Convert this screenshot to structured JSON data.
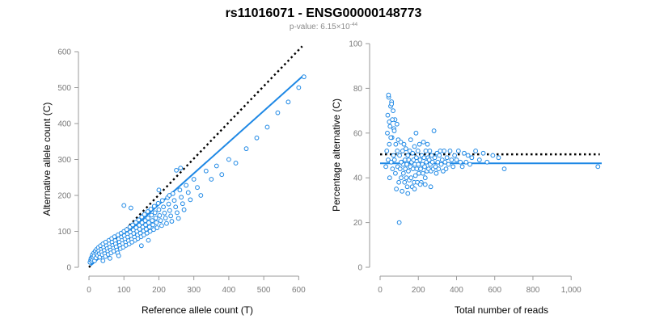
{
  "title": "rs11016071 - ENSG00000148773",
  "subtitle": {
    "prefix": "p-value: 6.15×10",
    "exponent": "-44"
  },
  "colors": {
    "points": "#1e88e5",
    "fit_line": "#1e88e5",
    "reference_line": "#000000",
    "axis": "#9a9a9a"
  },
  "chart_data": [
    {
      "type": "scatter",
      "xlabel": "Reference allele count (T)",
      "ylabel": "Alternative allele count (C)",
      "xlim": [
        0,
        620
      ],
      "ylim": [
        0,
        600
      ],
      "xticks": [
        0,
        100,
        200,
        300,
        400,
        500,
        600
      ],
      "yticks": [
        0,
        100,
        200,
        300,
        400,
        500,
        600
      ],
      "xtick_labels": [
        "0",
        "100",
        "200",
        "300",
        "400",
        "500",
        "600"
      ],
      "ytick_labels": [
        "0",
        "100",
        "200",
        "300",
        "400",
        "500",
        "600"
      ],
      "grid": false,
      "reference_line": {
        "style": "dotted",
        "points": [
          [
            0,
            0
          ],
          [
            610,
            615
          ]
        ]
      },
      "fit_line": {
        "style": "solid",
        "points": [
          [
            5,
            5
          ],
          [
            615,
            535
          ]
        ]
      },
      "points": [
        [
          3,
          14
        ],
        [
          5,
          20
        ],
        [
          6,
          25
        ],
        [
          8,
          17
        ],
        [
          9,
          30
        ],
        [
          10,
          22
        ],
        [
          10,
          35
        ],
        [
          12,
          28
        ],
        [
          14,
          40
        ],
        [
          15,
          32
        ],
        [
          16,
          18
        ],
        [
          18,
          45
        ],
        [
          20,
          38
        ],
        [
          20,
          26
        ],
        [
          22,
          50
        ],
        [
          24,
          42
        ],
        [
          25,
          33
        ],
        [
          27,
          55
        ],
        [
          28,
          46
        ],
        [
          30,
          38
        ],
        [
          31,
          28
        ],
        [
          33,
          60
        ],
        [
          35,
          50
        ],
        [
          36,
          42
        ],
        [
          38,
          35
        ],
        [
          40,
          65
        ],
        [
          42,
          55
        ],
        [
          44,
          47
        ],
        [
          45,
          38
        ],
        [
          47,
          30
        ],
        [
          48,
          70
        ],
        [
          50,
          60
        ],
        [
          52,
          52
        ],
        [
          54,
          44
        ],
        [
          55,
          36
        ],
        [
          57,
          75
        ],
        [
          58,
          65
        ],
        [
          60,
          56
        ],
        [
          62,
          48
        ],
        [
          63,
          40
        ],
        [
          65,
          80
        ],
        [
          66,
          70
        ],
        [
          68,
          61
        ],
        [
          70,
          53
        ],
        [
          71,
          45
        ],
        [
          73,
          85
        ],
        [
          75,
          74
        ],
        [
          76,
          65
        ],
        [
          78,
          57
        ],
        [
          80,
          48
        ],
        [
          82,
          40
        ],
        [
          83,
          90
        ],
        [
          85,
          79
        ],
        [
          87,
          70
        ],
        [
          88,
          61
        ],
        [
          90,
          52
        ],
        [
          92,
          95
        ],
        [
          93,
          84
        ],
        [
          95,
          75
        ],
        [
          96,
          66
        ],
        [
          98,
          56
        ],
        [
          100,
          100
        ],
        [
          101,
          88
        ],
        [
          103,
          79
        ],
        [
          105,
          70
        ],
        [
          106,
          61
        ],
        [
          108,
          105
        ],
        [
          110,
          93
        ],
        [
          111,
          84
        ],
        [
          113,
          74
        ],
        [
          115,
          65
        ],
        [
          117,
          112
        ],
        [
          118,
          98
        ],
        [
          120,
          88
        ],
        [
          122,
          78
        ],
        [
          123,
          70
        ],
        [
          125,
          118
        ],
        [
          127,
          104
        ],
        [
          128,
          94
        ],
        [
          130,
          84
        ],
        [
          132,
          75
        ],
        [
          134,
          125
        ],
        [
          135,
          110
        ],
        [
          137,
          100
        ],
        [
          139,
          90
        ],
        [
          140,
          80
        ],
        [
          142,
          132
        ],
        [
          144,
          117
        ],
        [
          145,
          106
        ],
        [
          147,
          95
        ],
        [
          149,
          85
        ],
        [
          151,
          140
        ],
        [
          152,
          124
        ],
        [
          154,
          112
        ],
        [
          156,
          101
        ],
        [
          157,
          90
        ],
        [
          159,
          147
        ],
        [
          161,
          130
        ],
        [
          162,
          118
        ],
        [
          164,
          106
        ],
        [
          166,
          95
        ],
        [
          168,
          155
        ],
        [
          169,
          137
        ],
        [
          171,
          124
        ],
        [
          173,
          112
        ],
        [
          175,
          100
        ],
        [
          177,
          162
        ],
        [
          179,
          145
        ],
        [
          181,
          130
        ],
        [
          183,
          118
        ],
        [
          185,
          105
        ],
        [
          187,
          170
        ],
        [
          189,
          152
        ],
        [
          191,
          137
        ],
        [
          193,
          124
        ],
        [
          195,
          110
        ],
        [
          198,
          178
        ],
        [
          200,
          160
        ],
        [
          202,
          144
        ],
        [
          205,
          130
        ],
        [
          208,
          116
        ],
        [
          210,
          186
        ],
        [
          213,
          168
        ],
        [
          216,
          151
        ],
        [
          219,
          137
        ],
        [
          222,
          122
        ],
        [
          225,
          194
        ],
        [
          228,
          176
        ],
        [
          231,
          158
        ],
        [
          234,
          143
        ],
        [
          237,
          128
        ],
        [
          240,
          205
        ],
        [
          244,
          186
        ],
        [
          248,
          168
        ],
        [
          252,
          152
        ],
        [
          256,
          136
        ],
        [
          260,
          215
        ],
        [
          264,
          195
        ],
        [
          268,
          177
        ],
        [
          272,
          160
        ],
        [
          278,
          228
        ],
        [
          284,
          208
        ],
        [
          290,
          188
        ],
        [
          300,
          245
        ],
        [
          310,
          222
        ],
        [
          320,
          200
        ],
        [
          335,
          268
        ],
        [
          350,
          245
        ],
        [
          365,
          282
        ],
        [
          380,
          258
        ],
        [
          400,
          300
        ],
        [
          420,
          290
        ],
        [
          450,
          330
        ],
        [
          480,
          360
        ],
        [
          510,
          390
        ],
        [
          540,
          430
        ],
        [
          570,
          460
        ],
        [
          600,
          500
        ],
        [
          615,
          530
        ],
        [
          40,
          18
        ],
        [
          60,
          25
        ],
        [
          85,
          32
        ],
        [
          100,
          172
        ],
        [
          120,
          165
        ],
        [
          150,
          60
        ],
        [
          170,
          75
        ],
        [
          200,
          215
        ],
        [
          230,
          200
        ],
        [
          250,
          270
        ],
        [
          262,
          276
        ]
      ]
    },
    {
      "type": "scatter",
      "xlabel": "Total number of reads",
      "ylabel": "Percentage alternative (C)",
      "xlim": [
        0,
        1160
      ],
      "ylim": [
        0,
        100
      ],
      "xticks": [
        0,
        200,
        400,
        600,
        800,
        1000
      ],
      "yticks": [
        0,
        20,
        40,
        60,
        80,
        100
      ],
      "xtick_labels": [
        "0",
        "200",
        "400",
        "600",
        "800",
        "1,000"
      ],
      "ytick_labels": [
        "0",
        "20",
        "40",
        "60",
        "80",
        "100"
      ],
      "grid": false,
      "reference_line": {
        "style": "dotted",
        "points": [
          [
            0,
            50.5
          ],
          [
            1150,
            50.5
          ]
        ]
      },
      "fit_line": {
        "style": "solid",
        "points": [
          [
            0,
            46.5
          ],
          [
            1160,
            46.5
          ]
        ]
      },
      "points": [
        [
          30,
          45
        ],
        [
          35,
          52
        ],
        [
          38,
          60
        ],
        [
          40,
          68
        ],
        [
          42,
          48
        ],
        [
          45,
          76
        ],
        [
          48,
          55
        ],
        [
          50,
          40
        ],
        [
          52,
          63
        ],
        [
          55,
          72
        ],
        [
          58,
          47
        ],
        [
          60,
          74
        ],
        [
          62,
          58
        ],
        [
          65,
          44
        ],
        [
          68,
          70
        ],
        [
          70,
          50
        ],
        [
          72,
          62
        ],
        [
          75,
          48
        ],
        [
          78,
          66
        ],
        [
          80,
          42
        ],
        [
          82,
          55
        ],
        [
          85,
          35
        ],
        [
          88,
          64
        ],
        [
          90,
          52
        ],
        [
          92,
          45
        ],
        [
          95,
          57
        ],
        [
          98,
          38
        ],
        [
          100,
          20
        ],
        [
          102,
          50
        ],
        [
          105,
          44
        ],
        [
          108,
          56
        ],
        [
          110,
          40
        ],
        [
          112,
          47
        ],
        [
          115,
          34
        ],
        [
          118,
          52
        ],
        [
          120,
          46
        ],
        [
          122,
          42
        ],
        [
          125,
          55
        ],
        [
          128,
          38
        ],
        [
          130,
          48
        ],
        [
          132,
          44
        ],
        [
          135,
          53
        ],
        [
          138,
          40
        ],
        [
          140,
          46
        ],
        [
          142,
          36
        ],
        [
          145,
          50
        ],
        [
          148,
          43
        ],
        [
          150,
          48
        ],
        [
          152,
          39
        ],
        [
          155,
          52
        ],
        [
          158,
          45
        ],
        [
          160,
          57
        ],
        [
          162,
          40
        ],
        [
          165,
          47
        ],
        [
          168,
          36
        ],
        [
          170,
          51
        ],
        [
          172,
          44
        ],
        [
          175,
          48
        ],
        [
          178,
          38
        ],
        [
          180,
          54
        ],
        [
          182,
          46
        ],
        [
          185,
          41
        ],
        [
          188,
          60
        ],
        [
          190,
          49
        ],
        [
          192,
          44
        ],
        [
          195,
          38
        ],
        [
          198,
          52
        ],
        [
          200,
          46
        ],
        [
          203,
          42
        ],
        [
          206,
          55
        ],
        [
          209,
          48
        ],
        [
          212,
          44
        ],
        [
          215,
          38
        ],
        [
          218,
          50
        ],
        [
          221,
          46
        ],
        [
          224,
          42
        ],
        [
          227,
          56
        ],
        [
          230,
          49
        ],
        [
          233,
          45
        ],
        [
          236,
          40
        ],
        [
          239,
          52
        ],
        [
          242,
          47
        ],
        [
          245,
          43
        ],
        [
          248,
          55
        ],
        [
          251,
          49
        ],
        [
          254,
          44
        ],
        [
          257,
          48
        ],
        [
          260,
          52
        ],
        [
          263,
          46
        ],
        [
          266,
          43
        ],
        [
          270,
          50
        ],
        [
          274,
          47
        ],
        [
          278,
          44
        ],
        [
          282,
          61
        ],
        [
          286,
          49
        ],
        [
          290,
          45
        ],
        [
          294,
          42
        ],
        [
          298,
          51
        ],
        [
          302,
          47
        ],
        [
          306,
          44
        ],
        [
          310,
          50
        ],
        [
          315,
          52
        ],
        [
          320,
          46
        ],
        [
          325,
          48
        ],
        [
          330,
          43
        ],
        [
          335,
          52
        ],
        [
          340,
          47
        ],
        [
          345,
          44
        ],
        [
          350,
          49
        ],
        [
          358,
          46
        ],
        [
          366,
          52
        ],
        [
          374,
          48
        ],
        [
          382,
          45
        ],
        [
          390,
          50
        ],
        [
          400,
          48
        ],
        [
          410,
          52
        ],
        [
          420,
          47
        ],
        [
          430,
          45
        ],
        [
          440,
          51
        ],
        [
          450,
          47
        ],
        [
          460,
          50
        ],
        [
          470,
          46
        ],
        [
          480,
          49
        ],
        [
          500,
          52
        ],
        [
          520,
          48
        ],
        [
          540,
          51
        ],
        [
          560,
          47
        ],
        [
          590,
          50
        ],
        [
          620,
          49
        ],
        [
          650,
          44
        ],
        [
          1140,
          45
        ],
        [
          44,
          77
        ],
        [
          60,
          73
        ],
        [
          48,
          65
        ],
        [
          56,
          58
        ],
        [
          64,
          66
        ],
        [
          74,
          61
        ],
        [
          110,
          47
        ],
        [
          145,
          33
        ],
        [
          180,
          35
        ],
        [
          210,
          37
        ],
        [
          236,
          37
        ],
        [
          265,
          36
        ]
      ]
    }
  ]
}
